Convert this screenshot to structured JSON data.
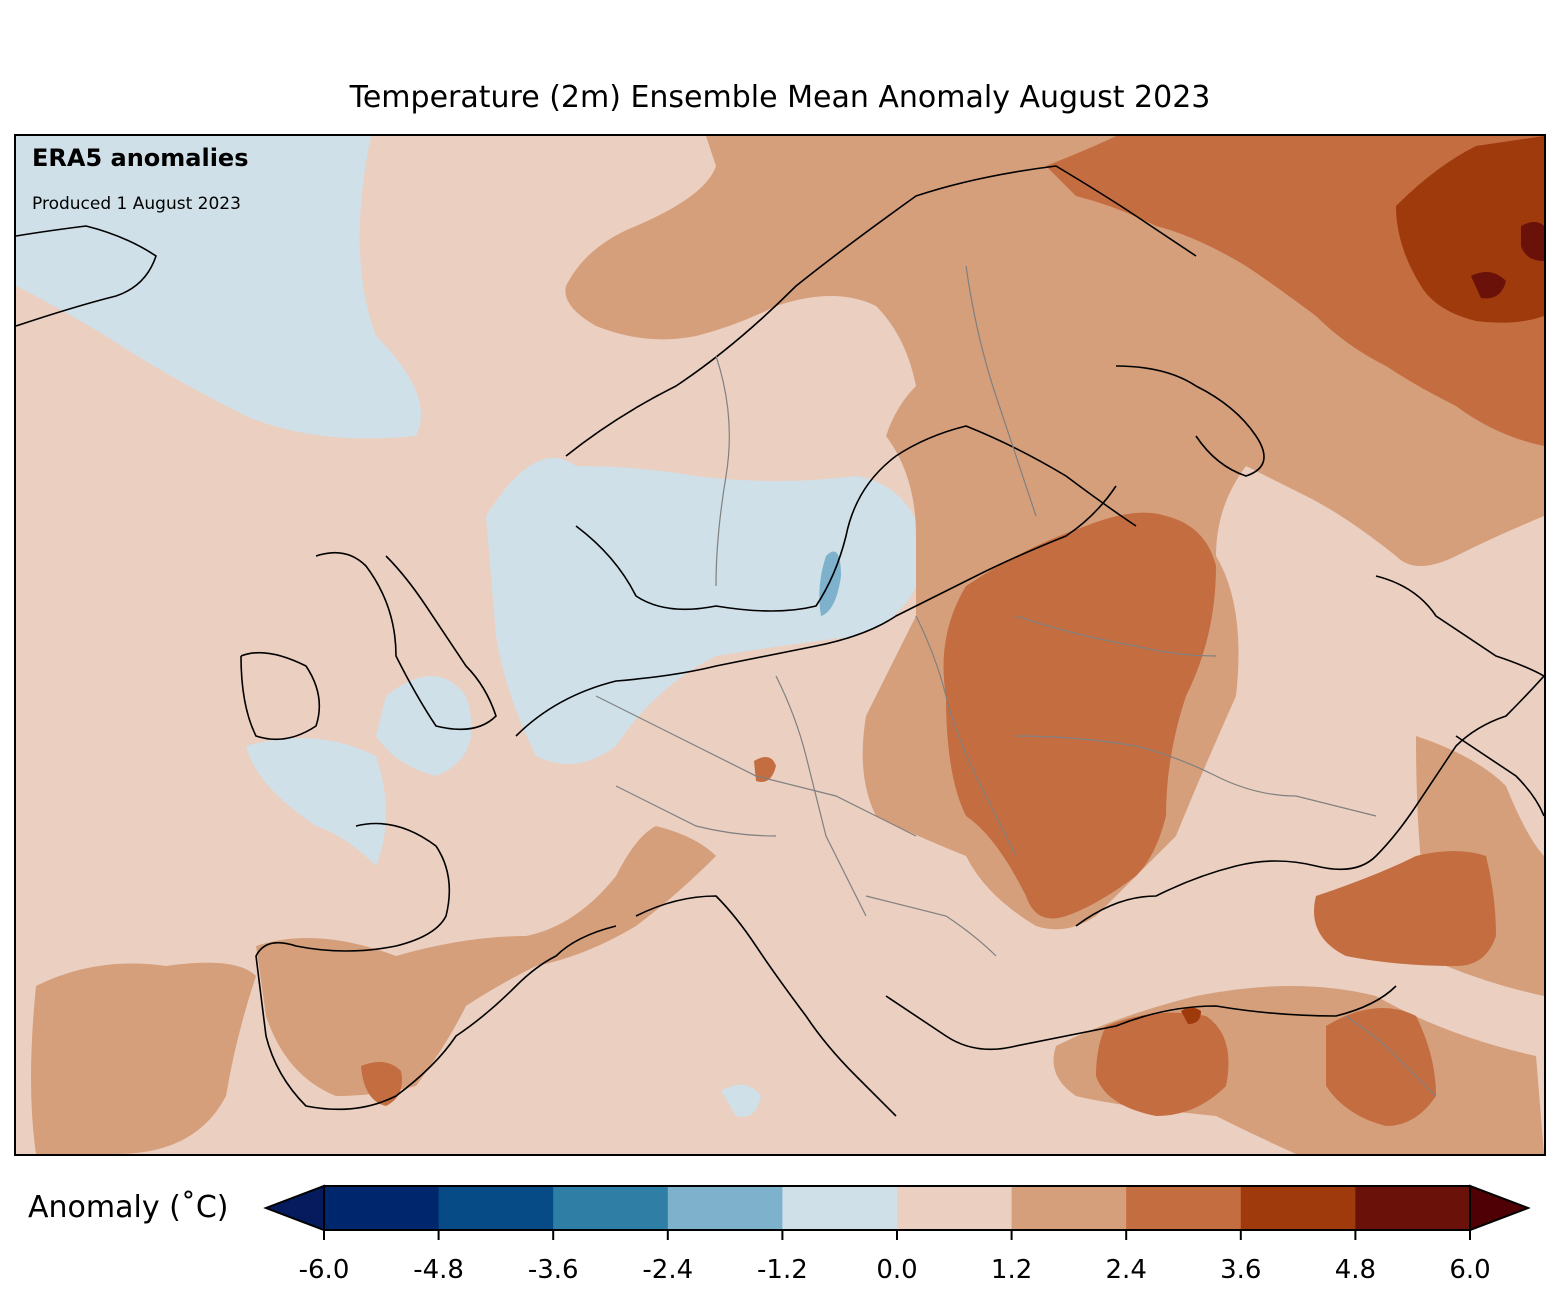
{
  "header": {
    "title": "Temperature (2m) Ensemble Mean Anomaly August 2023"
  },
  "map": {
    "annotation_title": "ERA5 anomalies",
    "annotation_subtitle": "Produced 1 August 2023",
    "region": "Europe"
  },
  "colorbar": {
    "label": "Anomaly (˚C)",
    "boundaries": [
      "-6.0",
      "-4.8",
      "-3.6",
      "-2.4",
      "-1.2",
      "0.0",
      "1.2",
      "2.4",
      "3.6",
      "4.8",
      "6.0"
    ],
    "colors": [
      "#051b5e",
      "#00266d",
      "#064b85",
      "#2e7ea6",
      "#7eb1cc",
      "#cfe0e8",
      "#ebcfc1",
      "#d59f7c",
      "#c46d40",
      "#9e3a0b",
      "#6a1109",
      "#4e0004"
    ],
    "extend": "both"
  },
  "colors": {
    "near_zero_cool": "#cfe0e8",
    "mild_warm": "#ebcfc1",
    "warm": "#d59f7c",
    "warmer": "#c46d40",
    "hot": "#9e3a0b",
    "very_hot": "#6a1109",
    "cool": "#7eb1cc"
  }
}
